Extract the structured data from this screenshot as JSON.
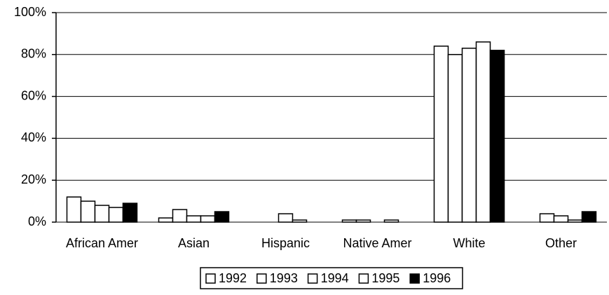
{
  "chart_data": {
    "type": "bar",
    "categories": [
      "African Amer",
      "Asian",
      "Hispanic",
      "Native Amer",
      "White",
      "Other"
    ],
    "series": [
      {
        "name": "1992",
        "color": "#ffffff",
        "values": [
          12,
          2,
          0,
          1,
          84,
          0
        ]
      },
      {
        "name": "1993",
        "color": "#ffffff",
        "values": [
          10,
          6,
          0,
          1,
          80,
          4
        ]
      },
      {
        "name": "1994",
        "color": "#ffffff",
        "values": [
          8,
          3,
          4,
          0,
          83,
          3
        ]
      },
      {
        "name": "1995",
        "color": "#ffffff",
        "values": [
          7,
          3,
          1,
          1,
          86,
          1
        ]
      },
      {
        "name": "1996",
        "color": "#000000",
        "values": [
          9,
          5,
          0,
          0,
          82,
          5
        ]
      }
    ],
    "ylim": [
      0,
      100
    ],
    "yticks": [
      {
        "value": 0,
        "label": "0%"
      },
      {
        "value": 20,
        "label": "20%"
      },
      {
        "value": 40,
        "label": "40%"
      },
      {
        "value": 60,
        "label": "60%"
      },
      {
        "value": 80,
        "label": "80%"
      },
      {
        "value": 100,
        "label": "100%"
      }
    ],
    "grid": true,
    "legend": "bottom"
  }
}
